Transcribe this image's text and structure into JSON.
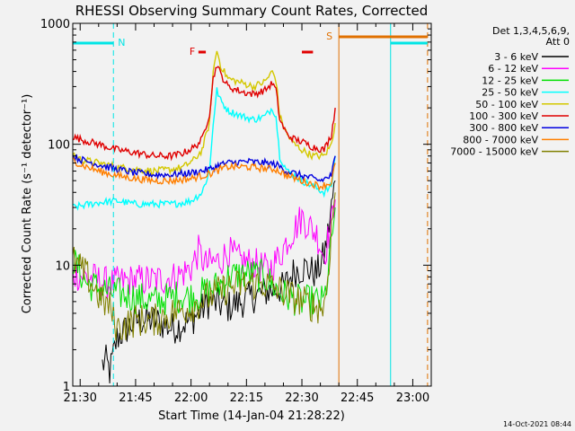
{
  "chart_data": {
    "type": "line",
    "title": "RHESSI Observing Summary Count Rates, Corrected",
    "xlabel": "Start Time (14-Jan-04 21:28:22)",
    "ylabel": "Corrected Count Rate (s⁻¹ detector⁻¹)",
    "yscale": "log",
    "ylim": [
      1,
      1000
    ],
    "xlim": [
      "21:28",
      "23:05"
    ],
    "x_ticks": [
      "21:30",
      "21:45",
      "22:00",
      "22:15",
      "22:30",
      "22:45",
      "23:00"
    ],
    "y_ticks": [
      "1",
      "10",
      "100",
      "1000"
    ],
    "legend_header": [
      "Det 1,3,4,5,6,9,",
      "Att 0"
    ],
    "legend_position": "right",
    "timestamp": "14-Oct-2021 08:44",
    "annotations": [
      {
        "label": "N",
        "time": "21:39",
        "color": "#00e5e5"
      },
      {
        "label": "F",
        "time": "22:02",
        "color": "#e00000"
      },
      {
        "label": "S",
        "time": "22:40",
        "color": "#e07000"
      }
    ],
    "flags": [
      {
        "name": "night",
        "color": "#00e5e5",
        "intervals": [
          [
            "21:28",
            "21:39"
          ],
          [
            "22:54",
            "23:04"
          ]
        ]
      },
      {
        "name": "flare",
        "color": "#e00000",
        "intervals": [
          [
            "22:02",
            "22:04"
          ],
          [
            "22:30",
            "22:33"
          ]
        ]
      },
      {
        "name": "saa",
        "color": "#e07000",
        "intervals": [
          [
            "22:40",
            "23:04"
          ]
        ]
      }
    ],
    "markers": [
      {
        "time": "21:28",
        "color": "#00e5e5",
        "style": "solid"
      },
      {
        "time": "21:39",
        "color": "#00e5e5",
        "style": "dashed"
      },
      {
        "time": "22:40",
        "color": "#e07000",
        "style": "solid"
      },
      {
        "time": "22:54",
        "color": "#00e5e5",
        "style": "solid"
      },
      {
        "time": "23:04",
        "color": "#e07000",
        "style": "dashed"
      }
    ],
    "series": [
      {
        "name": "3 - 6 keV",
        "color": "#000000",
        "x": [
          "21:36",
          "21:37",
          "21:38",
          "21:39",
          "21:40",
          "21:45",
          "21:50",
          "21:55",
          "22:00",
          "22:05",
          "22:10",
          "22:15",
          "22:20",
          "22:25",
          "22:28",
          "22:31",
          "22:34",
          "22:36",
          "22:37",
          "22:38",
          "22:39"
        ],
        "y": [
          1.5,
          1.6,
          1.3,
          1.8,
          2.5,
          3.5,
          3.5,
          3.0,
          3.5,
          5.0,
          4.5,
          5.2,
          6.0,
          6.5,
          9.0,
          9.5,
          8.5,
          12,
          18,
          30,
          50
        ]
      },
      {
        "name": "6 - 12 keV",
        "color": "#ff00ff",
        "x": [
          "21:28",
          "21:32",
          "21:38",
          "21:44",
          "21:50",
          "21:56",
          "22:00",
          "22:02",
          "22:04",
          "22:08",
          "22:10",
          "22:13",
          "22:18",
          "22:21",
          "22:24",
          "22:26",
          "22:28",
          "22:30",
          "22:32",
          "22:34",
          "22:36",
          "22:38",
          "22:39"
        ],
        "y": [
          8.5,
          8,
          7,
          7.5,
          7.5,
          8,
          9.5,
          13,
          10,
          11,
          13,
          11,
          10,
          9,
          12,
          16,
          20,
          25,
          21,
          18,
          12,
          22,
          35
        ]
      },
      {
        "name": "12 - 25 keV",
        "color": "#00e000",
        "x": [
          "21:28",
          "21:32",
          "21:38",
          "21:44",
          "21:50",
          "21:56",
          "22:00",
          "22:04",
          "22:08",
          "22:10",
          "22:15",
          "22:20",
          "22:24",
          "22:26",
          "22:30",
          "22:34",
          "22:36",
          "22:37",
          "22:38",
          "22:39"
        ],
        "y": [
          11,
          7,
          6,
          5.5,
          5,
          5.5,
          5.5,
          6,
          7,
          8,
          8.5,
          8,
          6,
          5.5,
          5,
          5,
          5,
          8,
          16,
          30
        ]
      },
      {
        "name": "25 - 50 keV",
        "color": "#00ffff",
        "x": [
          "21:28",
          "21:35",
          "21:40",
          "21:45",
          "21:50",
          "21:55",
          "21:58",
          "22:00",
          "22:03",
          "22:05",
          "22:06",
          "22:07",
          "22:08",
          "22:10",
          "22:14",
          "22:17",
          "22:20",
          "22:22",
          "22:23",
          "22:24",
          "22:26",
          "22:28",
          "22:30",
          "22:33",
          "22:36",
          "22:38",
          "22:39"
        ],
        "y": [
          30,
          33,
          34,
          32,
          32,
          32,
          33,
          34,
          40,
          60,
          150,
          280,
          230,
          190,
          170,
          160,
          170,
          200,
          170,
          80,
          60,
          55,
          50,
          45,
          40,
          45,
          80
        ]
      },
      {
        "name": "50 - 100 keV",
        "color": "#d4c800",
        "x": [
          "21:28",
          "21:30",
          "21:35",
          "21:40",
          "21:45",
          "21:50",
          "21:55",
          "21:58",
          "22:01",
          "22:03",
          "22:05",
          "22:06",
          "22:07",
          "22:08",
          "22:10",
          "22:14",
          "22:17",
          "22:20",
          "22:22",
          "22:23",
          "22:24",
          "22:26",
          "22:28",
          "22:30",
          "22:33",
          "22:36",
          "22:38",
          "22:39"
        ],
        "y": [
          85,
          75,
          70,
          65,
          62,
          60,
          62,
          65,
          75,
          90,
          150,
          400,
          600,
          450,
          350,
          320,
          300,
          330,
          400,
          340,
          170,
          120,
          100,
          90,
          80,
          80,
          100,
          150
        ]
      },
      {
        "name": "100 - 300 keV",
        "color": "#e00000",
        "x": [
          "21:28",
          "21:30",
          "21:35",
          "21:40",
          "21:45",
          "21:50",
          "21:55",
          "21:58",
          "22:01",
          "22:03",
          "22:05",
          "22:06",
          "22:07",
          "22:08",
          "22:10",
          "22:14",
          "22:17",
          "22:20",
          "22:22",
          "22:23",
          "22:24",
          "22:26",
          "22:28",
          "22:30",
          "22:33",
          "22:36",
          "22:38",
          "22:39"
        ],
        "y": [
          115,
          110,
          100,
          90,
          85,
          80,
          80,
          85,
          95,
          110,
          180,
          350,
          460,
          380,
          300,
          270,
          260,
          280,
          320,
          280,
          160,
          120,
          110,
          105,
          95,
          90,
          120,
          200
        ]
      },
      {
        "name": "300 - 800 keV",
        "color": "#0000e0",
        "x": [
          "21:28",
          "21:30",
          "21:35",
          "21:40",
          "21:45",
          "21:50",
          "21:55",
          "22:00",
          "22:05",
          "22:08",
          "22:10",
          "22:15",
          "22:20",
          "22:23",
          "22:26",
          "22:30",
          "22:35",
          "22:38",
          "22:39"
        ],
        "y": [
          80,
          75,
          68,
          62,
          58,
          56,
          56,
          58,
          62,
          68,
          70,
          72,
          70,
          68,
          60,
          55,
          50,
          55,
          80
        ]
      },
      {
        "name": "800 - 7000 keV",
        "color": "#ff7f00",
        "x": [
          "21:28",
          "21:30",
          "21:35",
          "21:40",
          "21:45",
          "21:50",
          "21:55",
          "22:00",
          "22:05",
          "22:08",
          "22:10",
          "22:15",
          "22:20",
          "22:23",
          "22:26",
          "22:30",
          "22:35",
          "22:38",
          "22:39"
        ],
        "y": [
          75,
          68,
          60,
          55,
          52,
          50,
          50,
          52,
          57,
          62,
          65,
          65,
          63,
          62,
          55,
          50,
          45,
          48,
          70
        ]
      },
      {
        "name": "7000 - 15000 keV",
        "color": "#808000",
        "x": [
          "21:28",
          "21:32",
          "21:36",
          "21:38",
          "21:40",
          "21:45",
          "21:50",
          "21:55",
          "22:00",
          "22:05",
          "22:10",
          "22:15",
          "22:20",
          "22:25",
          "22:30",
          "22:34",
          "22:36",
          "22:37",
          "22:38",
          "22:39"
        ],
        "y": [
          11,
          8,
          5,
          4.5,
          3.0,
          3.5,
          3.5,
          4,
          4.5,
          5.5,
          6.5,
          7,
          7,
          6,
          5,
          4.5,
          4.5,
          8,
          20,
          40
        ]
      }
    ]
  }
}
